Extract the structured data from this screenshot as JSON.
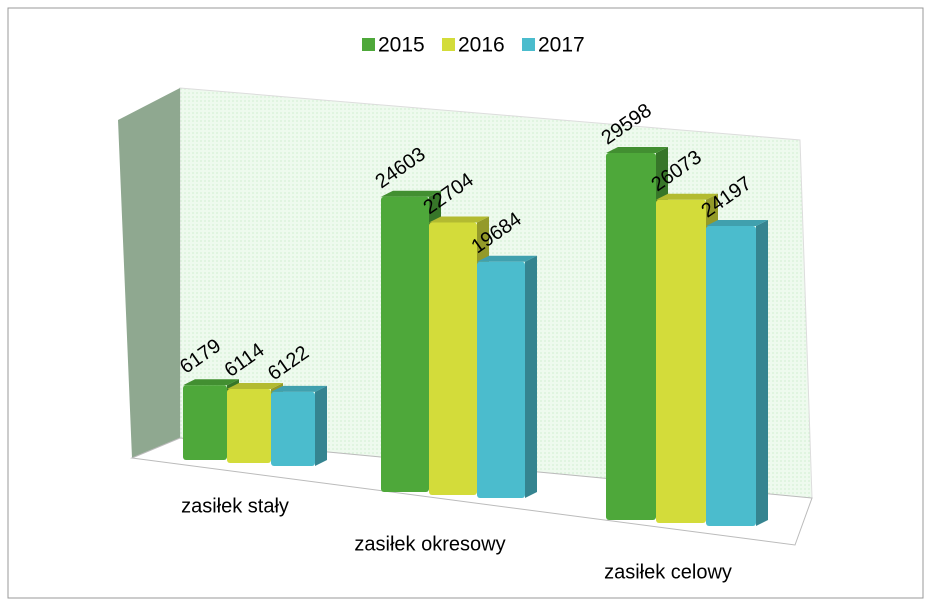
{
  "chart_data": {
    "type": "bar3d",
    "categories": [
      "zasiłek stały",
      "zasiłek okresowy",
      "zasiłek celowy"
    ],
    "series": [
      {
        "name": "2015",
        "color": "#4ea83a",
        "values": [
          6179,
          24603,
          29598
        ]
      },
      {
        "name": "2016",
        "color": "#d3dc3a",
        "values": [
          6114,
          22704,
          26073
        ]
      },
      {
        "name": "2017",
        "color": "#4bbccd",
        "values": [
          6122,
          19684,
          24197
        ]
      }
    ],
    "legend": "top"
  }
}
